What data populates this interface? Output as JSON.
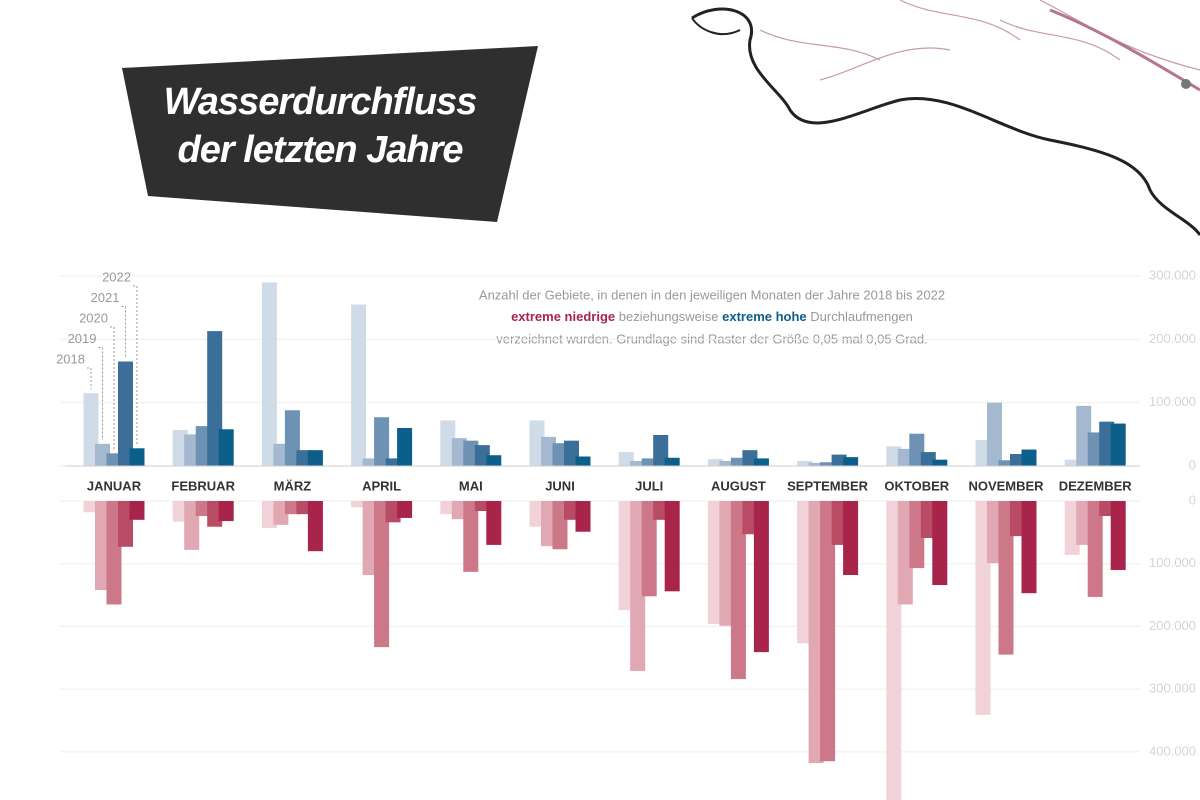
{
  "chart_data": [
    {
      "type": "bar",
      "title": "Wasserdurchfluss der letzten Jahre",
      "annotation": {
        "line1": "Anzahl der Gebiete, in denen in den jeweiligen Monaten der Jahre 2018 bis 2022",
        "low": "extreme niedrige",
        "mid": "beziehungsweise",
        "high": "extreme hohe",
        "end": "Durchlaufmengen",
        "line3": "verzeichnet wurden. Grundlage sind Raster der Größe 0,05 mal 0,05 Grad."
      },
      "categories": [
        "JANUAR",
        "FEBRUAR",
        "MÄRZ",
        "APRIL",
        "MAI",
        "JUNI",
        "JULI",
        "AUGUST",
        "SEPTEMBER",
        "OKTOBER",
        "NOVEMBER",
        "DEZEMBER"
      ],
      "series": [
        {
          "name": "2018",
          "color": "#cfdbe7",
          "values": [
            115000,
            57000,
            290000,
            255000,
            72000,
            72000,
            22000,
            11000,
            8000,
            31000,
            41000,
            10000
          ]
        },
        {
          "name": "2019",
          "color": "#a4b8d0",
          "values": [
            35000,
            50000,
            35000,
            12000,
            44000,
            46000,
            8000,
            8000,
            5000,
            27000,
            100000,
            95000
          ]
        },
        {
          "name": "2020",
          "color": "#6e92b4",
          "values": [
            20000,
            63000,
            88000,
            77000,
            40000,
            36000,
            12000,
            13000,
            6000,
            51000,
            9000,
            53000
          ]
        },
        {
          "name": "2021",
          "color": "#3b6f99",
          "values": [
            165000,
            213000,
            25000,
            12000,
            33000,
            40000,
            49000,
            25000,
            18000,
            22000,
            19000,
            70000
          ]
        },
        {
          "name": "2022",
          "color": "#0d5f8b",
          "values": [
            28000,
            58000,
            25000,
            60000,
            17000,
            15000,
            13000,
            12000,
            14000,
            10000,
            26000,
            67000
          ]
        }
      ],
      "ylim": [
        0,
        300000
      ],
      "yticks": [
        0,
        {
          "value": 100000,
          "label": "100.000"
        },
        {
          "value": 200000,
          "label": "200.000"
        },
        {
          "value": 300000,
          "label": "300.000"
        }
      ],
      "grid": true
    },
    {
      "type": "bar",
      "inverted": true,
      "series": [
        {
          "color": "#f1d2d9",
          "values": [
            18000,
            33000,
            43000,
            10000,
            21000,
            41000,
            174000,
            196000,
            227000,
            480000,
            341000,
            86000
          ]
        },
        {
          "color": "#e1a7b3",
          "values": [
            142000,
            78000,
            38000,
            118000,
            29000,
            72000,
            271000,
            199000,
            418000,
            165000,
            99000,
            70000
          ]
        },
        {
          "color": "#cd7889",
          "values": [
            165000,
            24000,
            21000,
            233000,
            113000,
            77000,
            152000,
            284000,
            415000,
            107000,
            245000,
            153000
          ]
        },
        {
          "color": "#b94b65",
          "values": [
            73000,
            41000,
            21000,
            34000,
            16000,
            30000,
            30000,
            53000,
            70000,
            59000,
            56000,
            24000
          ]
        },
        {
          "color": "#a8244b",
          "values": [
            30000,
            32000,
            80000,
            27000,
            70000,
            49000,
            144000,
            241000,
            118000,
            134000,
            147000,
            110000
          ]
        }
      ],
      "ylim": [
        0,
        480000
      ],
      "yticks": [
        0,
        {
          "value": 100000,
          "label": "100.000"
        },
        {
          "value": 200000,
          "label": "200.000"
        },
        {
          "value": 300000,
          "label": "300.000"
        },
        {
          "value": 400000,
          "label": "400.000"
        }
      ],
      "grid": true
    }
  ]
}
